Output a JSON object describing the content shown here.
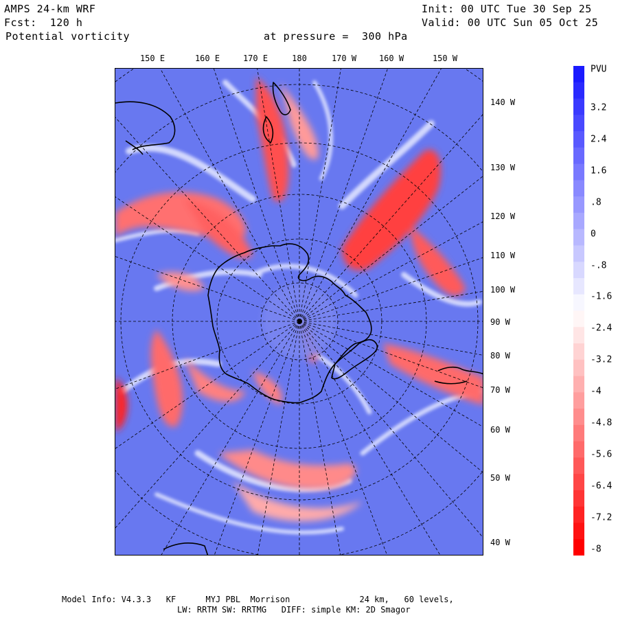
{
  "header": {
    "model": "AMPS 24-km WRF",
    "forecast": "Fcst:  120 h",
    "field": "Potential vorticity",
    "level": "at pressure =  300 hPa",
    "init": "Init: 00 UTC Tue 30 Sep 25",
    "valid": "Valid: 00 UTC Sun 05 Oct 25"
  },
  "longitude_labels_top": [
    "150 E",
    "160 E",
    "170 E",
    "180",
    "170 W",
    "160 W",
    "150 W"
  ],
  "longitude_labels_right": [
    "140 W",
    "130 W",
    "120 W",
    "110 W",
    "100 W",
    "90 W",
    "80 W",
    "70 W",
    "60 W",
    "50 W",
    "40 W"
  ],
  "colorbar": {
    "unit": "PVU",
    "tick_labels": [
      "3.2",
      "2.4",
      "1.6",
      ".8",
      "0",
      "-.8",
      "-1.6",
      "-2.4",
      "-3.2",
      "-4",
      "-4.8",
      "-5.6",
      "-6.4",
      "-7.2",
      "-8"
    ],
    "max_color": "#1a1aff",
    "mid_color": "#ffffff",
    "min_color": "#ff0000"
  },
  "colors": {
    "positive_pv_fill": "#6878f0",
    "negative_pv_fill": "#ff4040",
    "coastline": "#000000",
    "gridline": "#000000"
  },
  "footer": {
    "line1": "Model Info: V4.3.3   KF      MYJ PBL  Morrison              24 km,   60 levels,",
    "line2": "LW: RRTM SW: RRTMG   DIFF: simple KM: 2D Smagor"
  }
}
